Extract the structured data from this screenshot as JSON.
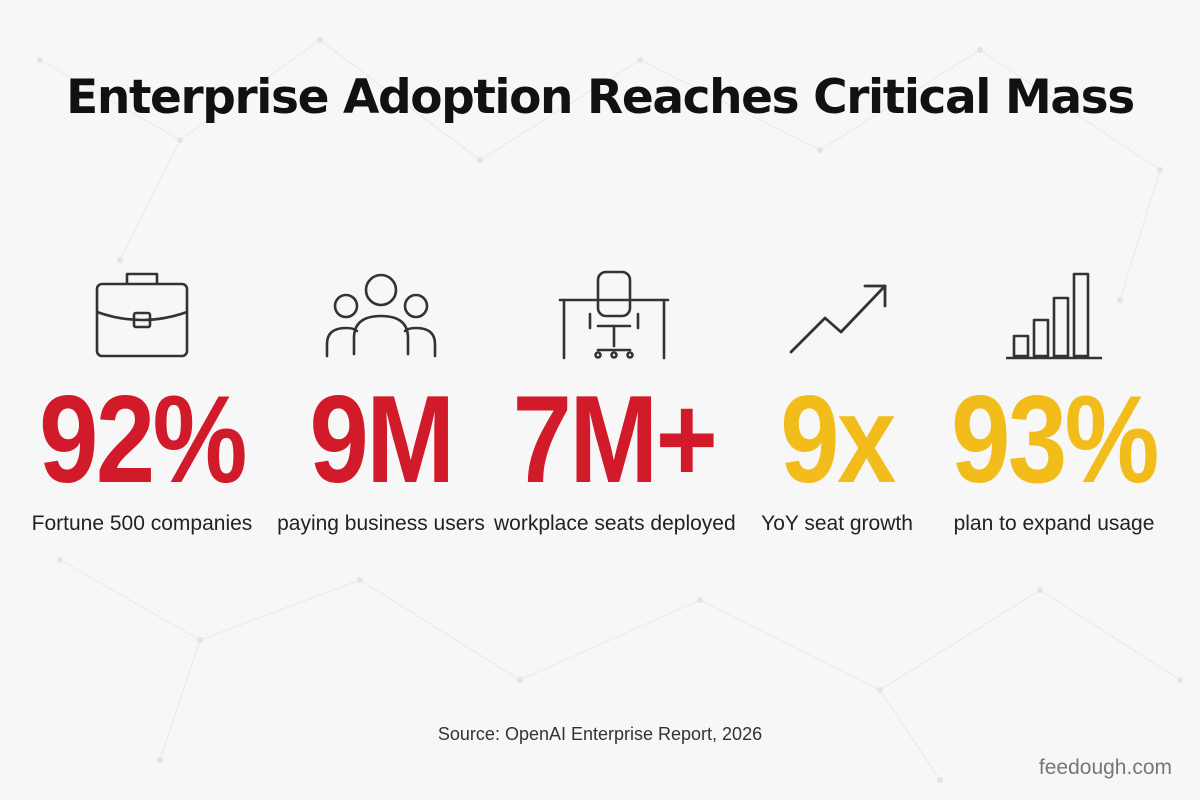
{
  "title": "Enterprise Adoption Reaches Critical Mass",
  "colors": {
    "red": "#d11a2a",
    "yellow": "#f2bc1b",
    "icon_stroke": "#333333"
  },
  "stats": [
    {
      "icon": "briefcase-icon",
      "value": "92%",
      "label": "Fortune 500 companies",
      "color": "#d11a2a"
    },
    {
      "icon": "users-group-icon",
      "value": "9M",
      "label": "paying business users",
      "color": "#d11a2a"
    },
    {
      "icon": "office-chair-desk-icon",
      "value": "7M+",
      "label": "workplace seats deployed",
      "color": "#d11a2a"
    },
    {
      "icon": "trend-arrow-up-icon",
      "value": "9x",
      "label": "YoY seat growth",
      "color": "#f2bc1b"
    },
    {
      "icon": "bar-chart-icon",
      "value": "93%",
      "label": "plan to expand usage",
      "color": "#f2bc1b"
    }
  ],
  "source": "Source: OpenAI Enterprise Report, 2026",
  "watermark": "feedough.com"
}
